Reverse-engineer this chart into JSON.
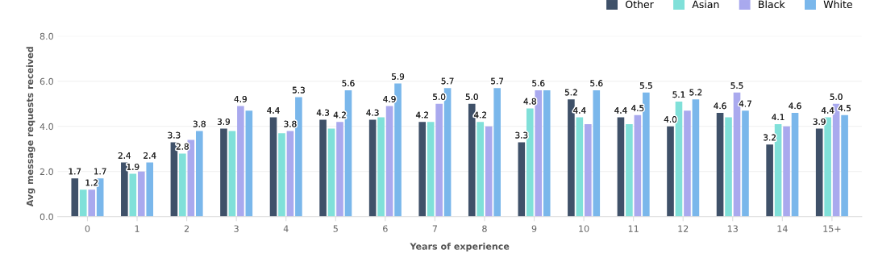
{
  "chart_data": {
    "type": "bar",
    "xlabel": "Years of experience",
    "ylabel": "Avg message requests received",
    "categories": [
      "0",
      "1",
      "2",
      "3",
      "4",
      "5",
      "6",
      "7",
      "8",
      "9",
      "10",
      "11",
      "12",
      "13",
      "14",
      "15+"
    ],
    "ylim": [
      0,
      8
    ],
    "yticks": [
      {
        "value": 0,
        "label": "0.0"
      },
      {
        "value": 2,
        "label": "2.0"
      },
      {
        "value": 4,
        "label": "4.0"
      },
      {
        "value": 6,
        "label": "6.0"
      },
      {
        "value": 8,
        "label": "8.0"
      }
    ],
    "grid": "y",
    "legend": "top right",
    "series": [
      {
        "name": "Other",
        "color": "#3f5169",
        "values": [
          1.7,
          2.4,
          3.3,
          3.9,
          4.4,
          4.3,
          4.3,
          4.2,
          5.0,
          3.3,
          5.2,
          4.4,
          4.0,
          4.6,
          3.2,
          3.9
        ],
        "value_labels": [
          "1.7",
          "2.4",
          "3.3",
          "3.9",
          "4.4",
          "4.3",
          "4.3",
          "4.2",
          "5.0",
          "3.3",
          "5.2",
          "4.4",
          "4.0",
          "4.6",
          "3.2",
          "3.9"
        ]
      },
      {
        "name": "Asian",
        "color": "#80e0d9",
        "values": [
          1.2,
          1.9,
          2.8,
          3.8,
          3.7,
          3.9,
          4.4,
          4.2,
          4.2,
          4.8,
          4.4,
          4.1,
          5.1,
          4.4,
          4.1,
          4.4
        ],
        "value_labels": [
          null,
          "1.9",
          "2.8",
          null,
          null,
          null,
          null,
          null,
          "4.2",
          "4.8",
          "4.4",
          null,
          "5.1",
          null,
          "4.1",
          "4.4"
        ]
      },
      {
        "name": "Black",
        "color": "#a9a9ee",
        "values": [
          1.2,
          2.0,
          3.4,
          4.9,
          3.8,
          4.2,
          4.9,
          5.0,
          4.0,
          5.6,
          4.1,
          4.5,
          4.7,
          5.5,
          4.0,
          5.0
        ],
        "value_labels": [
          "1.2",
          null,
          null,
          "4.9",
          "3.8",
          "4.2",
          "4.9",
          "5.0",
          null,
          "5.6",
          null,
          "4.5",
          null,
          "5.5",
          null,
          "5.0"
        ]
      },
      {
        "name": "White",
        "color": "#7ab7eb",
        "values": [
          1.7,
          2.4,
          3.8,
          4.7,
          5.3,
          5.6,
          5.9,
          5.7,
          5.7,
          5.6,
          5.6,
          5.5,
          5.2,
          4.7,
          4.6,
          4.5
        ],
        "value_labels": [
          "1.7",
          "2.4",
          "3.8",
          null,
          "5.3",
          "5.6",
          "5.9",
          "5.7",
          "5.7",
          null,
          "5.6",
          "5.5",
          "5.2",
          "4.7",
          "4.6",
          "4.5"
        ]
      }
    ]
  }
}
